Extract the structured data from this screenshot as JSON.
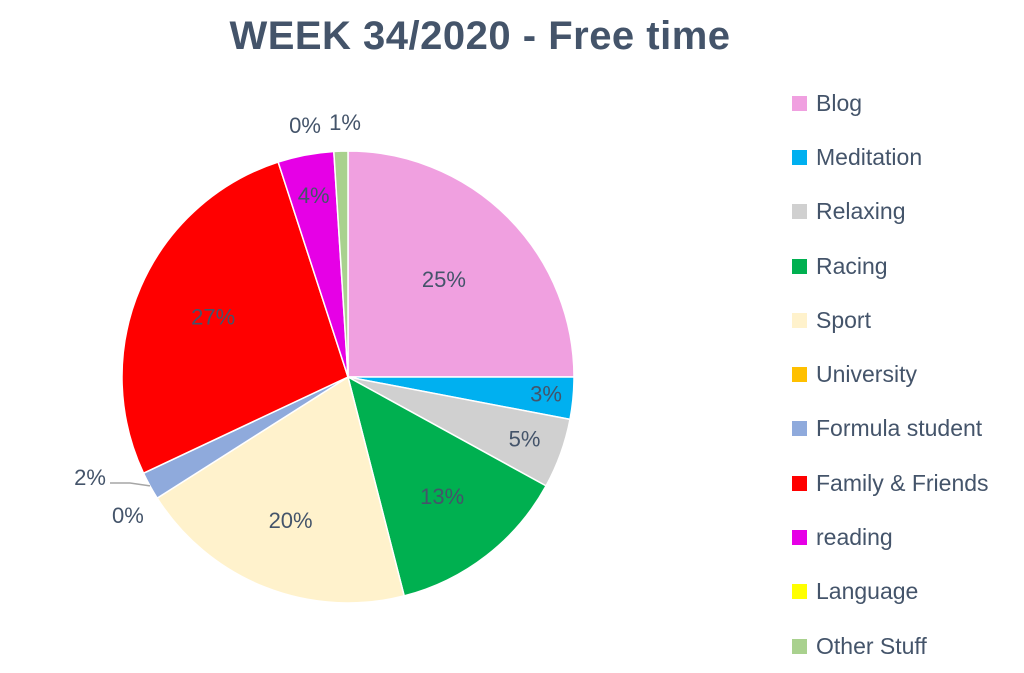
{
  "chart_data": {
    "type": "pie",
    "title": "WEEK 34/2020 - Free time",
    "legend_position": "right",
    "categories": [
      "Blog",
      "Meditation",
      "Relaxing",
      "Racing",
      "Sport",
      "University",
      "Formula student",
      "Family & Friends",
      "reading",
      "Language",
      "Other Stuff"
    ],
    "values": [
      25,
      3,
      5,
      13,
      20,
      0,
      2,
      27,
      4,
      0,
      1
    ],
    "labels": [
      "25%",
      "3%",
      "5%",
      "13%",
      "20%",
      "0%",
      "2%",
      "27%",
      "4%",
      "0%",
      "1%"
    ],
    "colors": [
      "#f0a0e0",
      "#00b0f0",
      "#d0d0d0",
      "#00b050",
      "#fff2cc",
      "#ffc000",
      "#8faadc",
      "#ff0000",
      "#e600e6",
      "#ffff00",
      "#a9d18e"
    ]
  }
}
